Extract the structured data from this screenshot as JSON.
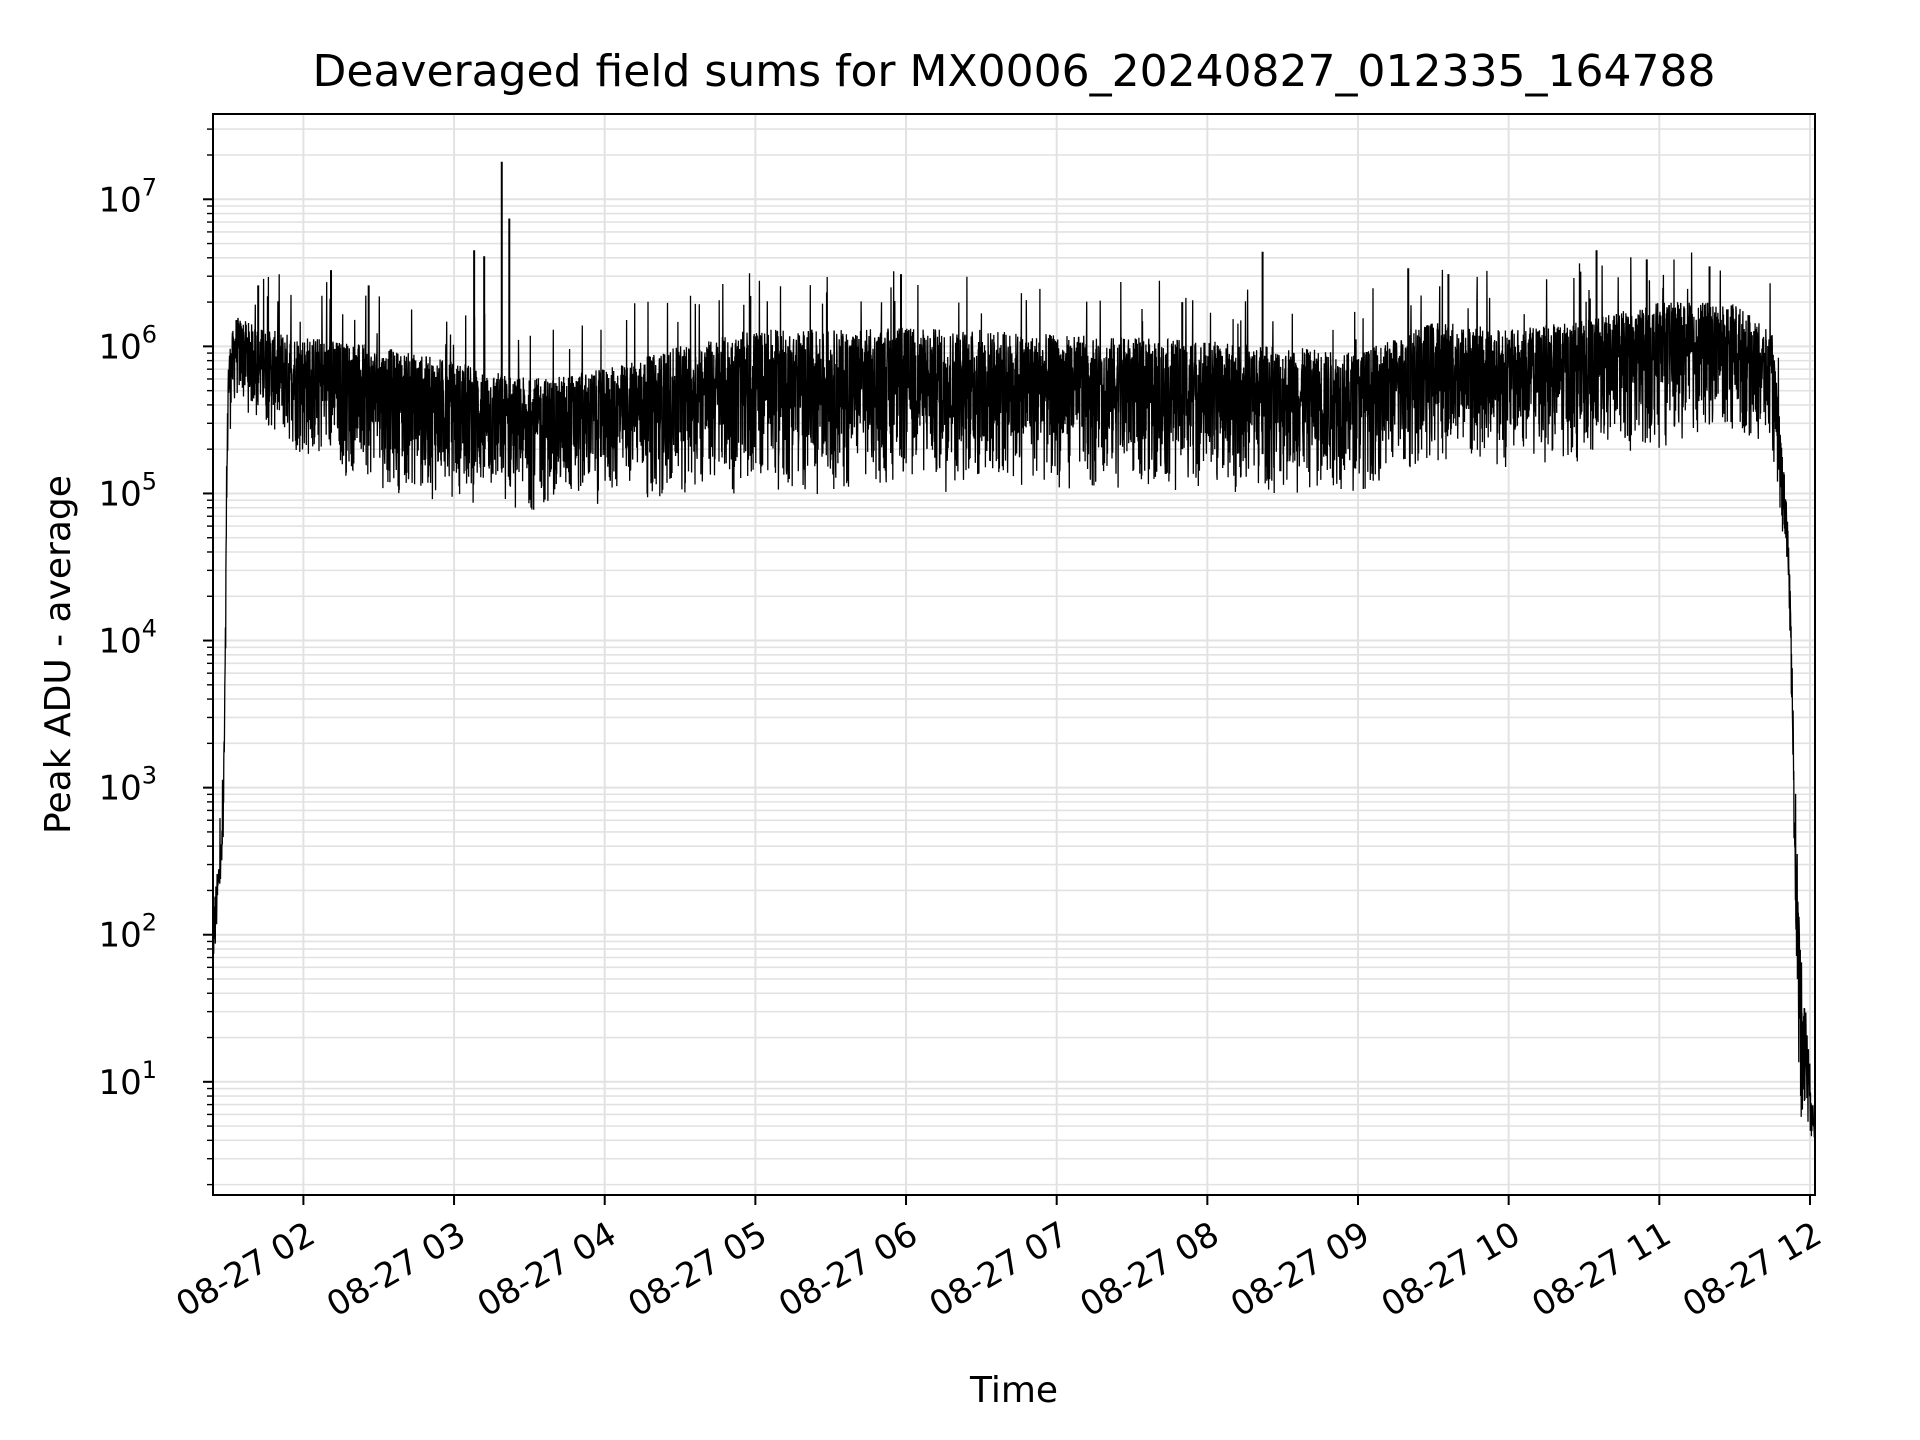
{
  "chart_data": {
    "type": "line",
    "title": "Deaveraged field sums for MX0006_20240827_012335_164788",
    "xlabel": "Time",
    "ylabel": "Peak ADU - average",
    "yscale": "log",
    "xlim": [
      "08-27 01:24",
      "08-27 12:02"
    ],
    "ylim": [
      1.7,
      38000000
    ],
    "grid": true,
    "x_tick_labels": [
      "08-27 02",
      "08-27 03",
      "08-27 04",
      "08-27 05",
      "08-27 06",
      "08-27 07",
      "08-27 08",
      "08-27 09",
      "08-27 10",
      "08-27 11",
      "08-27 12"
    ],
    "y_ticks": [
      {
        "base": "10",
        "exp": "1"
      },
      {
        "base": "10",
        "exp": "2"
      },
      {
        "base": "10",
        "exp": "3"
      },
      {
        "base": "10",
        "exp": "4"
      },
      {
        "base": "10",
        "exp": "5"
      },
      {
        "base": "10",
        "exp": "6"
      },
      {
        "base": "10",
        "exp": "7"
      }
    ],
    "series": [
      {
        "color": "#000000",
        "band_envelope": [
          {
            "t": "01:24",
            "lo": 40,
            "hi": 150
          },
          {
            "t": "01:28",
            "lo": 250,
            "hi": 600
          },
          {
            "t": "01:30",
            "lo": 200000,
            "hi": 900000
          },
          {
            "t": "01:33",
            "lo": 400000,
            "hi": 1600000
          },
          {
            "t": "01:45",
            "lo": 250000,
            "hi": 1300000
          },
          {
            "t": "02:00",
            "lo": 150000,
            "hi": 1200000
          },
          {
            "t": "02:30",
            "lo": 100000,
            "hi": 1000000
          },
          {
            "t": "03:00",
            "lo": 80000,
            "hi": 800000
          },
          {
            "t": "03:30",
            "lo": 70000,
            "hi": 600000
          },
          {
            "t": "04:00",
            "lo": 80000,
            "hi": 700000
          },
          {
            "t": "04:30",
            "lo": 90000,
            "hi": 1000000
          },
          {
            "t": "05:00",
            "lo": 90000,
            "hi": 1300000
          },
          {
            "t": "05:30",
            "lo": 95000,
            "hi": 1300000
          },
          {
            "t": "06:00",
            "lo": 100000,
            "hi": 1350000
          },
          {
            "t": "06:30",
            "lo": 100000,
            "hi": 1300000
          },
          {
            "t": "07:00",
            "lo": 100000,
            "hi": 1200000
          },
          {
            "t": "07:30",
            "lo": 100000,
            "hi": 1150000
          },
          {
            "t": "08:00",
            "lo": 100000,
            "hi": 1100000
          },
          {
            "t": "08:30",
            "lo": 90000,
            "hi": 1000000
          },
          {
            "t": "09:00",
            "lo": 100000,
            "hi": 900000
          },
          {
            "t": "09:30",
            "lo": 150000,
            "hi": 1500000
          },
          {
            "t": "10:00",
            "lo": 150000,
            "hi": 1300000
          },
          {
            "t": "10:30",
            "lo": 150000,
            "hi": 1500000
          },
          {
            "t": "11:00",
            "lo": 200000,
            "hi": 2000000
          },
          {
            "t": "11:30",
            "lo": 250000,
            "hi": 2000000
          },
          {
            "t": "11:45",
            "lo": 150000,
            "hi": 1200000
          },
          {
            "t": "11:51",
            "lo": 30000,
            "hi": 80000
          },
          {
            "t": "11:53",
            "lo": 2000,
            "hi": 8000
          },
          {
            "t": "11:54",
            "lo": 100,
            "hi": 500
          },
          {
            "t": "11:56",
            "lo": 4,
            "hi": 110
          },
          {
            "t": "12:02",
            "lo": 3.8,
            "hi": 4.5
          }
        ],
        "spikes": [
          {
            "t": "01:42",
            "y": 2600000
          },
          {
            "t": "02:11",
            "y": 3300000
          },
          {
            "t": "02:26",
            "y": 2600000
          },
          {
            "t": "03:08",
            "y": 4500000
          },
          {
            "t": "03:12",
            "y": 4100000
          },
          {
            "t": "03:19",
            "y": 18000000
          },
          {
            "t": "03:22",
            "y": 7400000
          },
          {
            "t": "04:58",
            "y": 2200000
          },
          {
            "t": "05:58",
            "y": 3100000
          },
          {
            "t": "07:50",
            "y": 2000000
          },
          {
            "t": "08:22",
            "y": 4400000
          },
          {
            "t": "09:20",
            "y": 3400000
          },
          {
            "t": "09:36",
            "y": 3100000
          },
          {
            "t": "10:35",
            "y": 4500000
          },
          {
            "t": "10:55",
            "y": 3900000
          },
          {
            "t": "11:20",
            "y": 3500000
          }
        ]
      }
    ]
  }
}
